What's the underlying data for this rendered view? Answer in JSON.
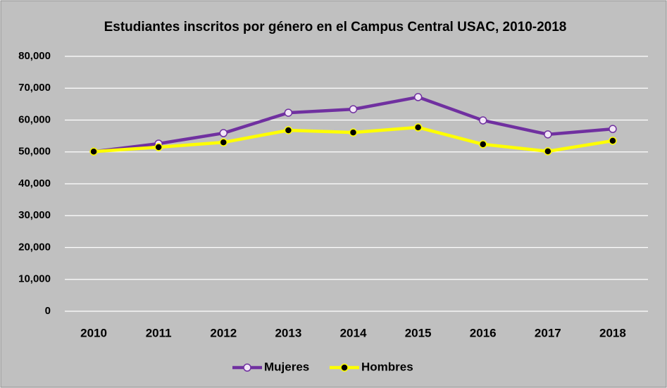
{
  "chart_data": {
    "type": "line",
    "title": "Estudiantes inscritos por género en el Campus Central USAC, 2010-2018",
    "categories": [
      "2010",
      "2011",
      "2012",
      "2013",
      "2014",
      "2015",
      "2016",
      "2017",
      "2018"
    ],
    "series": [
      {
        "name": "Mujeres",
        "color": "#7030a0",
        "marker_fill": "#f2e6f7",
        "values": [
          50100,
          52600,
          55900,
          62300,
          63400,
          67200,
          59900,
          55500,
          57200
        ]
      },
      {
        "name": "Hombres",
        "color": "#ffff00",
        "marker_fill": "#000000",
        "values": [
          50100,
          51500,
          53000,
          56800,
          56100,
          57700,
          52400,
          50200,
          53500
        ]
      }
    ],
    "ylim": [
      0,
      80000
    ],
    "yticks": [
      0,
      {
        "value": 10000,
        "label": "10,000"
      },
      {
        "value": 20000,
        "label": "20,000"
      },
      {
        "value": 30000,
        "label": "30,000"
      },
      {
        "value": 40000,
        "label": "40,000"
      },
      {
        "value": 50000,
        "label": "50,000"
      },
      {
        "value": 60000,
        "label": "60,000"
      },
      {
        "value": 70000,
        "label": "70,000"
      },
      {
        "value": 80000,
        "label": "80,000"
      }
    ],
    "grid": true,
    "legend": "bottom",
    "background": "#c0c0c0"
  }
}
